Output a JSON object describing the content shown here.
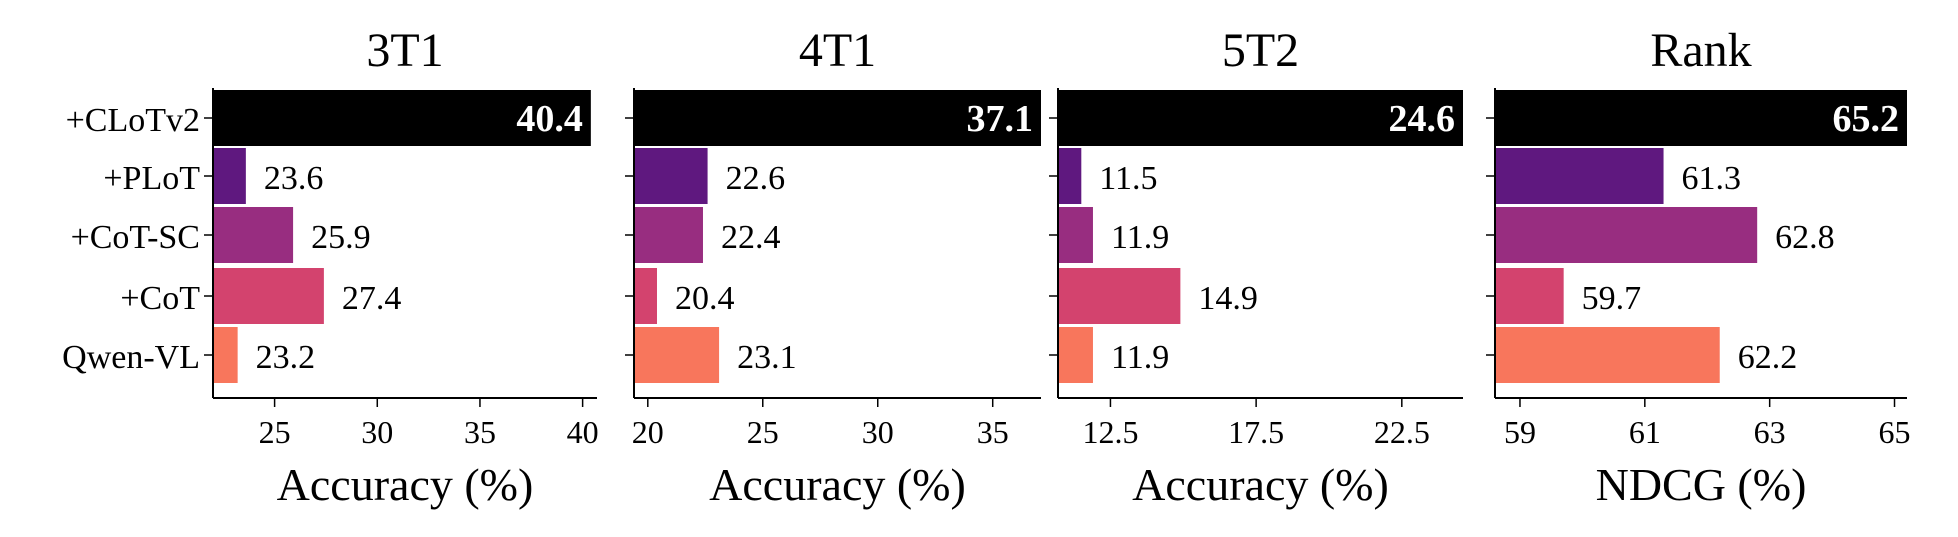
{
  "chart_data": [
    {
      "type": "bar",
      "orientation": "horizontal",
      "title": "3T1",
      "xlabel": "Accuracy (%)",
      "categories": [
        "+CLoTv2",
        "+PLoT",
        "+CoT-SC",
        "+CoT",
        "Qwen-VL"
      ],
      "values": [
        40.4,
        23.6,
        25.9,
        27.4,
        23.2
      ],
      "value_labels": [
        "40.4",
        "23.6",
        "25.9",
        "27.4",
        "23.2"
      ],
      "xlim": [
        22.0,
        40.7
      ],
      "xticks": [
        25,
        30,
        35,
        40
      ],
      "xtick_labels": [
        "25",
        "30",
        "35",
        "40"
      ],
      "show_category_labels": true
    },
    {
      "type": "bar",
      "orientation": "horizontal",
      "title": "4T1",
      "xlabel": "Accuracy (%)",
      "categories": [
        "+CLoTv2",
        "+PLoT",
        "+CoT-SC",
        "+CoT",
        "Qwen-VL"
      ],
      "values": [
        37.1,
        22.6,
        22.4,
        20.4,
        23.1
      ],
      "value_labels": [
        "37.1",
        "22.6",
        "22.4",
        "20.4",
        "23.1"
      ],
      "xlim": [
        19.4,
        37.1
      ],
      "xticks": [
        20,
        25,
        30,
        35
      ],
      "xtick_labels": [
        "20",
        "25",
        "30",
        "35"
      ],
      "show_category_labels": false
    },
    {
      "type": "bar",
      "orientation": "horizontal",
      "title": "5T2",
      "xlabel": "Accuracy (%)",
      "categories": [
        "+CLoTv2",
        "+PLoT",
        "+CoT-SC",
        "+CoT",
        "Qwen-VL"
      ],
      "values": [
        24.6,
        11.5,
        11.9,
        14.9,
        11.9
      ],
      "value_labels": [
        "24.6",
        "11.5",
        "11.9",
        "14.9",
        "11.9"
      ],
      "xlim": [
        10.7,
        24.6
      ],
      "xticks": [
        12.5,
        17.5,
        22.5
      ],
      "xtick_labels": [
        "12.5",
        "17.5",
        "22.5"
      ],
      "show_category_labels": false
    },
    {
      "type": "bar",
      "orientation": "horizontal",
      "title": "Rank",
      "xlabel": "NDCG (%)",
      "categories": [
        "+CLoTv2",
        "+PLoT",
        "+CoT-SC",
        "+CoT",
        "Qwen-VL"
      ],
      "values": [
        65.2,
        61.3,
        62.8,
        59.7,
        62.2
      ],
      "value_labels": [
        "65.2",
        "61.3",
        "62.8",
        "59.7",
        "62.2"
      ],
      "xlim": [
        58.6,
        65.2
      ],
      "xticks": [
        59,
        61,
        63,
        65
      ],
      "xtick_labels": [
        "59",
        "61",
        "63",
        "65"
      ],
      "show_category_labels": false
    }
  ],
  "colors": {
    "+CLoTv2": "#000000",
    "+PLoT": "#5f187f",
    "+CoT-SC": "#982d80",
    "+CoT": "#d3436e",
    "Qwen-VL": "#f8765c",
    "highlight_label": "#ffffff",
    "text": "#000000"
  },
  "grid": false,
  "legend": "none"
}
